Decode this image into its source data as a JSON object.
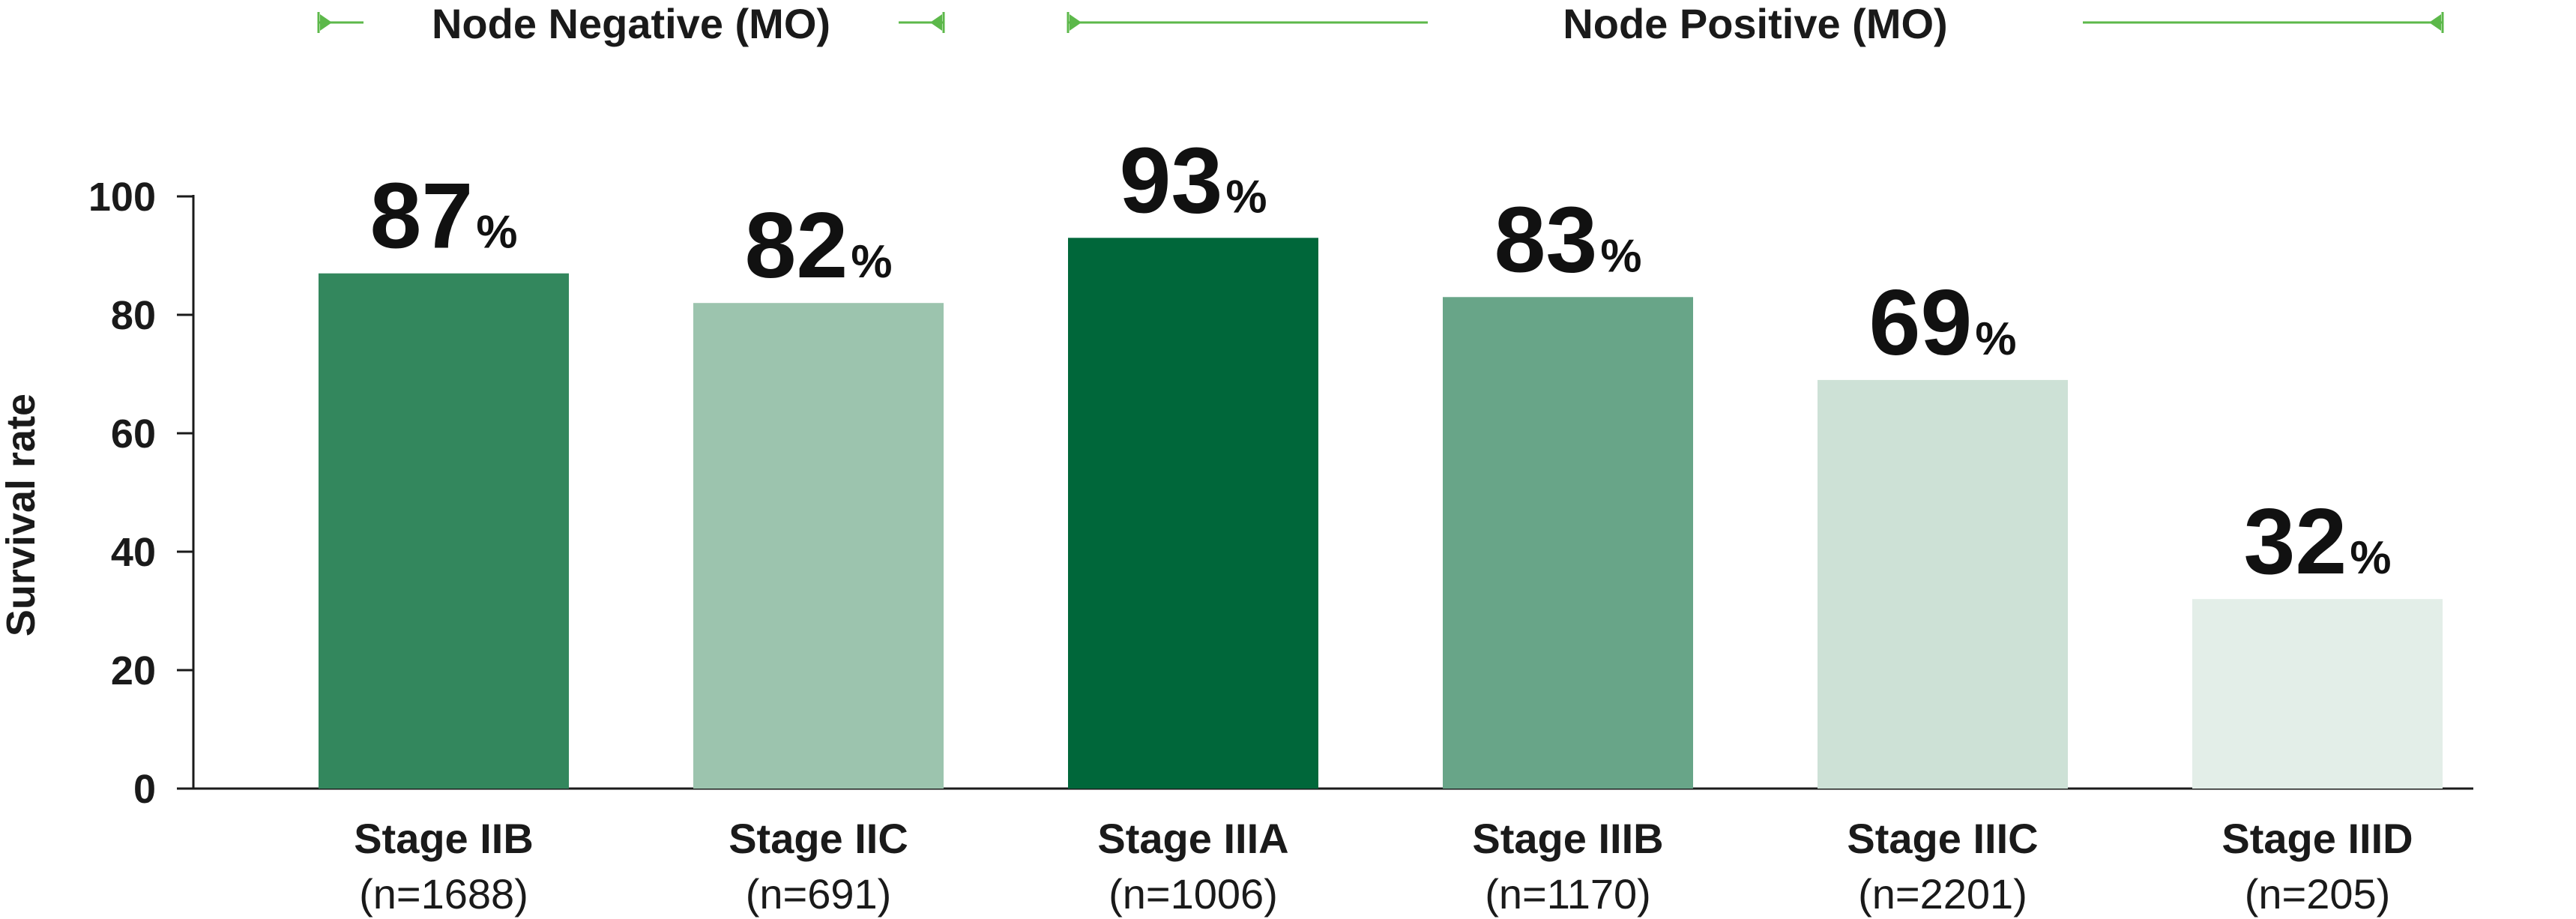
{
  "chart_data": {
    "type": "bar",
    "ylabel": "Survival rate",
    "ylim": [
      0,
      100
    ],
    "yticks": [
      0,
      20,
      40,
      60,
      80,
      100
    ],
    "value_suffix": "%",
    "categories": [
      "Stage IIB",
      "Stage IIC",
      "Stage IIIA",
      "Stage IIIB",
      "Stage IIIC",
      "Stage IIID"
    ],
    "sample_sizes": [
      "(n=1688)",
      "(n=691)",
      "(n=1006)",
      "(n=1170)",
      "(n=2201)",
      "(n=205)"
    ],
    "values": [
      87,
      82,
      93,
      83,
      69,
      32
    ],
    "bar_colors": [
      "#33875d",
      "#9cc4ae",
      "#00673a",
      "#68a588",
      "#cde1d6",
      "#e3eee8"
    ],
    "groups": [
      {
        "label": "Node Negative (MO)",
        "category_span": [
          0,
          1
        ]
      },
      {
        "label": "Node Positive (MO)",
        "category_span": [
          2,
          5
        ]
      }
    ],
    "grid": false,
    "bracket_color": "#5cb84a"
  }
}
